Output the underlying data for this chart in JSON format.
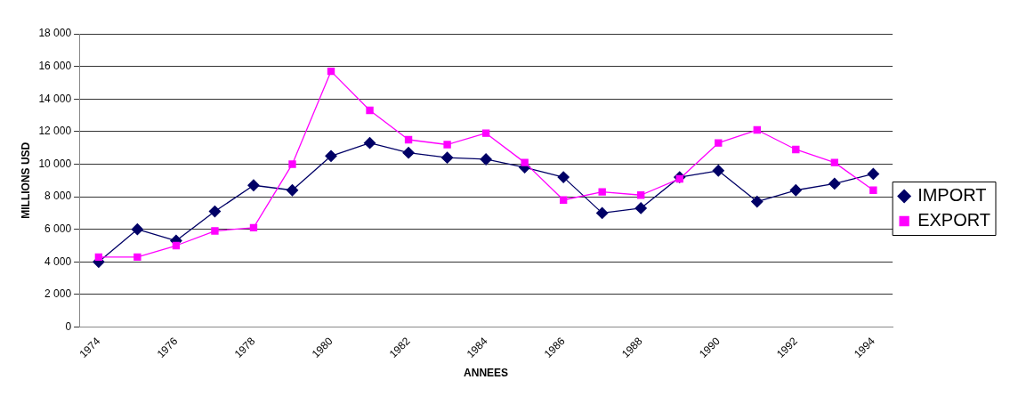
{
  "chart_data": {
    "type": "line",
    "xlabel": "ANNEES",
    "ylabel": "MILLIONS USD",
    "categories": [
      "1974",
      null,
      "1976",
      null,
      "1978",
      null,
      "1980",
      null,
      "1982",
      null,
      "1984",
      null,
      "1986",
      null,
      "1988",
      null,
      "1990",
      null,
      "1992",
      null,
      "1994"
    ],
    "series": [
      {
        "name": "IMPORT",
        "color": "#000066",
        "marker": "diamond",
        "values": [
          4000,
          6000,
          5300,
          7100,
          8700,
          8400,
          10500,
          11300,
          10700,
          10400,
          10300,
          9800,
          9200,
          7000,
          7300,
          9200,
          9600,
          7700,
          8400,
          8800,
          9400
        ]
      },
      {
        "name": "EXPORT",
        "color": "#ff00ff",
        "marker": "square",
        "values": [
          4300,
          4300,
          5000,
          5900,
          6100,
          10000,
          15700,
          13300,
          11500,
          11200,
          11900,
          10100,
          7800,
          8300,
          8100,
          9100,
          11300,
          12100,
          10900,
          10100,
          8400
        ]
      }
    ],
    "ylim": [
      0,
      18000
    ],
    "yticks": [
      {
        "value": 0,
        "label": "0"
      },
      {
        "value": 2000,
        "label": "2 000"
      },
      {
        "value": 4000,
        "label": "4 000"
      },
      {
        "value": 6000,
        "label": "6 000"
      },
      {
        "value": 8000,
        "label": "8 000"
      },
      {
        "value": 10000,
        "label": "10 000"
      },
      {
        "value": 12000,
        "label": "12 000"
      },
      {
        "value": 14000,
        "label": "14 000"
      },
      {
        "value": 16000,
        "label": "16 000"
      },
      {
        "value": 18000,
        "label": "18 000"
      }
    ],
    "grid": "y",
    "legend": "right",
    "line_style": "solid"
  }
}
